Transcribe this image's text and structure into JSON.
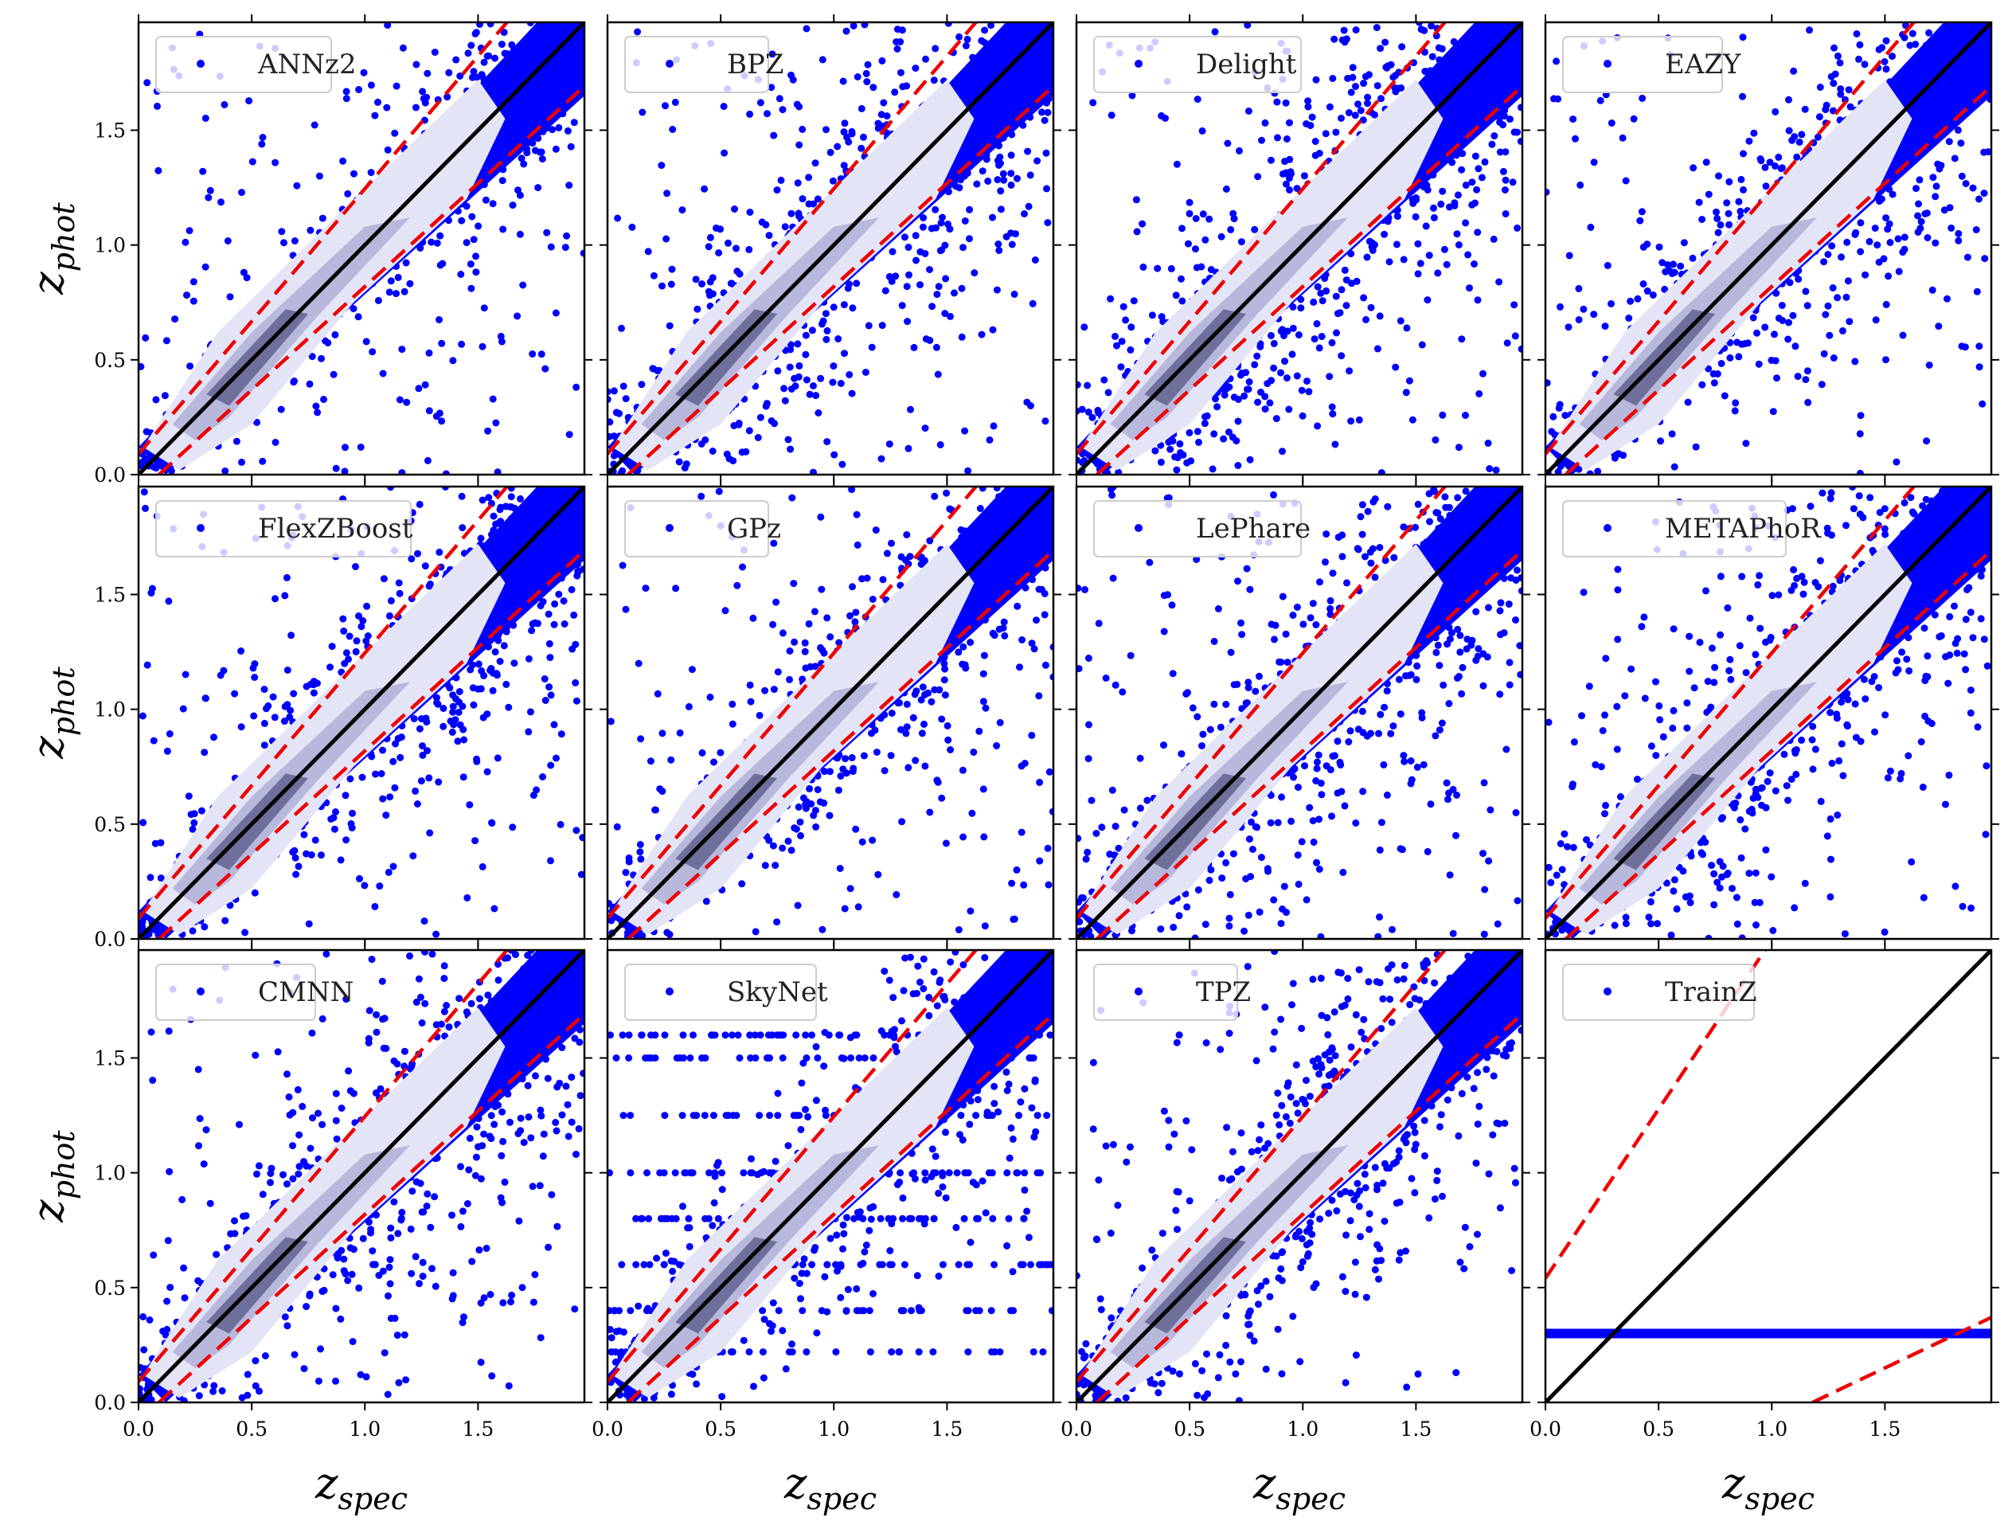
{
  "figure": {
    "xlabel_main": "z",
    "xlabel_sub": "spec",
    "ylabel_main": "z",
    "ylabel_sub": "phot",
    "xticks": [
      "0.0",
      "0.5",
      "1.0",
      "1.5"
    ],
    "yticks": [
      "0.0",
      "0.5",
      "1.0",
      "1.5"
    ],
    "colors": {
      "points": "#0000ff",
      "density_light": "#e4e4f7",
      "density_mid": "#b8b8dc",
      "density_dark": "#6f6f9c",
      "identity_line": "#000000",
      "outlier_bounds": "#ee0000"
    }
  },
  "chart_data": [
    {
      "type": "scatter",
      "legend": "ANNz2",
      "xlim": [
        0,
        1.97
      ],
      "ylim": [
        0,
        1.97
      ],
      "reference_lines": [
        {
          "style": "solid",
          "color": "black",
          "slope": 1,
          "intercept": 0
        },
        {
          "style": "dashed",
          "color": "red",
          "slope": 1.15,
          "intercept": 0.15
        },
        {
          "style": "dashed",
          "color": "red",
          "slope": 0.85,
          "intercept": -0.15
        }
      ]
    },
    {
      "type": "scatter",
      "legend": "BPZ",
      "xlim": [
        0,
        1.97
      ],
      "ylim": [
        0,
        1.97
      ]
    },
    {
      "type": "scatter",
      "legend": "Delight",
      "xlim": [
        0,
        1.97
      ],
      "ylim": [
        0,
        1.97
      ]
    },
    {
      "type": "scatter",
      "legend": "EAZY",
      "xlim": [
        0,
        1.97
      ],
      "ylim": [
        0,
        1.97
      ]
    },
    {
      "type": "scatter",
      "legend": "FlexZBoost",
      "xlim": [
        0,
        1.97
      ],
      "ylim": [
        0,
        1.97
      ]
    },
    {
      "type": "scatter",
      "legend": "GPz",
      "xlim": [
        0,
        1.97
      ],
      "ylim": [
        0,
        1.97
      ]
    },
    {
      "type": "scatter",
      "legend": "LePhare",
      "xlim": [
        0,
        1.97
      ],
      "ylim": [
        0,
        1.97
      ]
    },
    {
      "type": "scatter",
      "legend": "METAPhoR",
      "xlim": [
        0,
        1.97
      ],
      "ylim": [
        0,
        1.97
      ]
    },
    {
      "type": "scatter",
      "legend": "CMNN",
      "xlim": [
        0,
        1.97
      ],
      "ylim": [
        0,
        1.97
      ]
    },
    {
      "type": "scatter",
      "legend": "SkyNet",
      "xlim": [
        0,
        1.97
      ],
      "ylim": [
        0,
        1.97
      ]
    },
    {
      "type": "scatter",
      "legend": "TPZ",
      "xlim": [
        0,
        1.97
      ],
      "ylim": [
        0,
        1.97
      ]
    },
    {
      "type": "scatter",
      "legend": "TrainZ",
      "xlim": [
        0,
        1.97
      ],
      "ylim": [
        0,
        1.97
      ],
      "constant_prediction": 0.3
    }
  ]
}
